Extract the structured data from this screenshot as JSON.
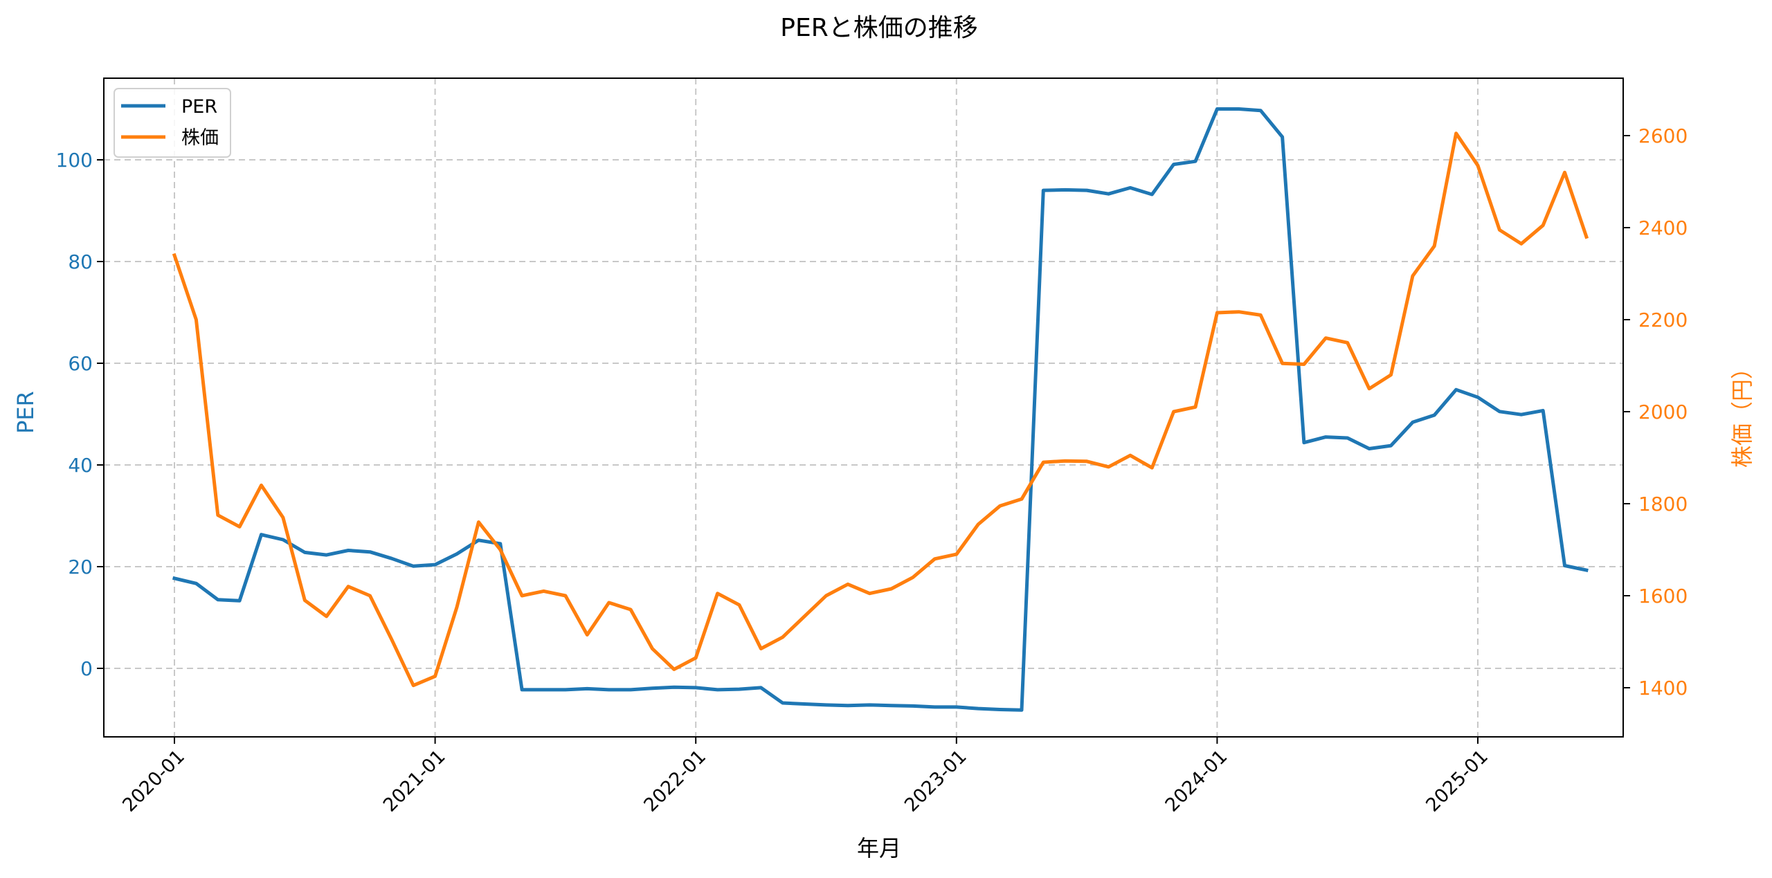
{
  "chart_data": {
    "type": "line",
    "title": "PERと株価の推移",
    "xlabel": "年月",
    "ylabel": "PER",
    "ylabel_right": "株価（円）",
    "grid": true,
    "legend_position": "upper left",
    "x_tick_labels": [
      "2020-01",
      "2021-01",
      "2022-01",
      "2023-01",
      "2024-01",
      "2025-01"
    ],
    "y_ticks_left": [
      0,
      20,
      40,
      60,
      80,
      100
    ],
    "y_ticks_right": [
      1400,
      1600,
      1800,
      2000,
      2200,
      2400,
      2600
    ],
    "ylim_left": [
      -14,
      116
    ],
    "ylim_right": [
      1290,
      2720
    ],
    "x": [
      "2020-01",
      "2020-02",
      "2020-03",
      "2020-04",
      "2020-05",
      "2020-06",
      "2020-07",
      "2020-08",
      "2020-09",
      "2020-10",
      "2020-11",
      "2020-12",
      "2021-01",
      "2021-02",
      "2021-03",
      "2021-04",
      "2021-05",
      "2021-06",
      "2021-07",
      "2021-08",
      "2021-09",
      "2021-10",
      "2021-11",
      "2021-12",
      "2022-01",
      "2022-02",
      "2022-03",
      "2022-04",
      "2022-05",
      "2022-06",
      "2022-07",
      "2022-08",
      "2022-09",
      "2022-10",
      "2022-11",
      "2022-12",
      "2023-01",
      "2023-02",
      "2023-03",
      "2023-04",
      "2023-05",
      "2023-06",
      "2023-07",
      "2023-08",
      "2023-09",
      "2023-10",
      "2023-11",
      "2023-12",
      "2024-01",
      "2024-02",
      "2024-03",
      "2024-04",
      "2024-05",
      "2024-06",
      "2024-07",
      "2024-08",
      "2024-09",
      "2024-10",
      "2024-11",
      "2024-12",
      "2025-01",
      "2025-02",
      "2025-03",
      "2025-04",
      "2025-05",
      "2025-06"
    ],
    "series": [
      {
        "name": "PER",
        "axis": "left",
        "color": "#1f77b4",
        "values": [
          17.7,
          16.7,
          13.5,
          13.3,
          26.3,
          25.3,
          22.8,
          22.3,
          23.2,
          22.9,
          21.6,
          20.1,
          20.4,
          22.5,
          25.2,
          24.5,
          -4.2,
          -4.2,
          -4.2,
          -4.0,
          -4.2,
          -4.2,
          -3.9,
          -3.7,
          -3.8,
          -4.2,
          -4.1,
          -3.8,
          -6.8,
          -7.0,
          -7.2,
          -7.3,
          -7.2,
          -7.3,
          -7.4,
          -7.6,
          -7.6,
          -7.9,
          -8.1,
          -8.2,
          94.0,
          94.1,
          94.0,
          93.3,
          94.5,
          93.2,
          99.1,
          99.7,
          110.0,
          110.0,
          109.7,
          104.5,
          44.4,
          45.5,
          45.3,
          43.2,
          43.8,
          48.4,
          49.8,
          54.8,
          53.3,
          50.5,
          49.9,
          50.7,
          20.2,
          19.3
        ]
      },
      {
        "name": "株価",
        "axis": "right",
        "color": "#ff7f0e",
        "values": [
          2340,
          2200,
          1775,
          1750,
          1840,
          1770,
          1590,
          1555,
          1620,
          1600,
          1505,
          1405,
          1425,
          1575,
          1760,
          1700,
          1600,
          1610,
          1600,
          1515,
          1585,
          1570,
          1485,
          1440,
          1465,
          1605,
          1580,
          1485,
          1510,
          1555,
          1600,
          1625,
          1605,
          1615,
          1640,
          1680,
          1690,
          1755,
          1795,
          1810,
          1890,
          1893,
          1892,
          1880,
          1905,
          1878,
          2000,
          2010,
          2215,
          2217,
          2210,
          2105,
          2103,
          2160,
          2150,
          2050,
          2080,
          2295,
          2360,
          2605,
          2535,
          2395,
          2365,
          2405,
          2520,
          2380
        ]
      }
    ]
  },
  "legend": [
    {
      "label": "PER",
      "color": "#1f77b4"
    },
    {
      "label": "株価",
      "color": "#ff7f0e"
    }
  ]
}
